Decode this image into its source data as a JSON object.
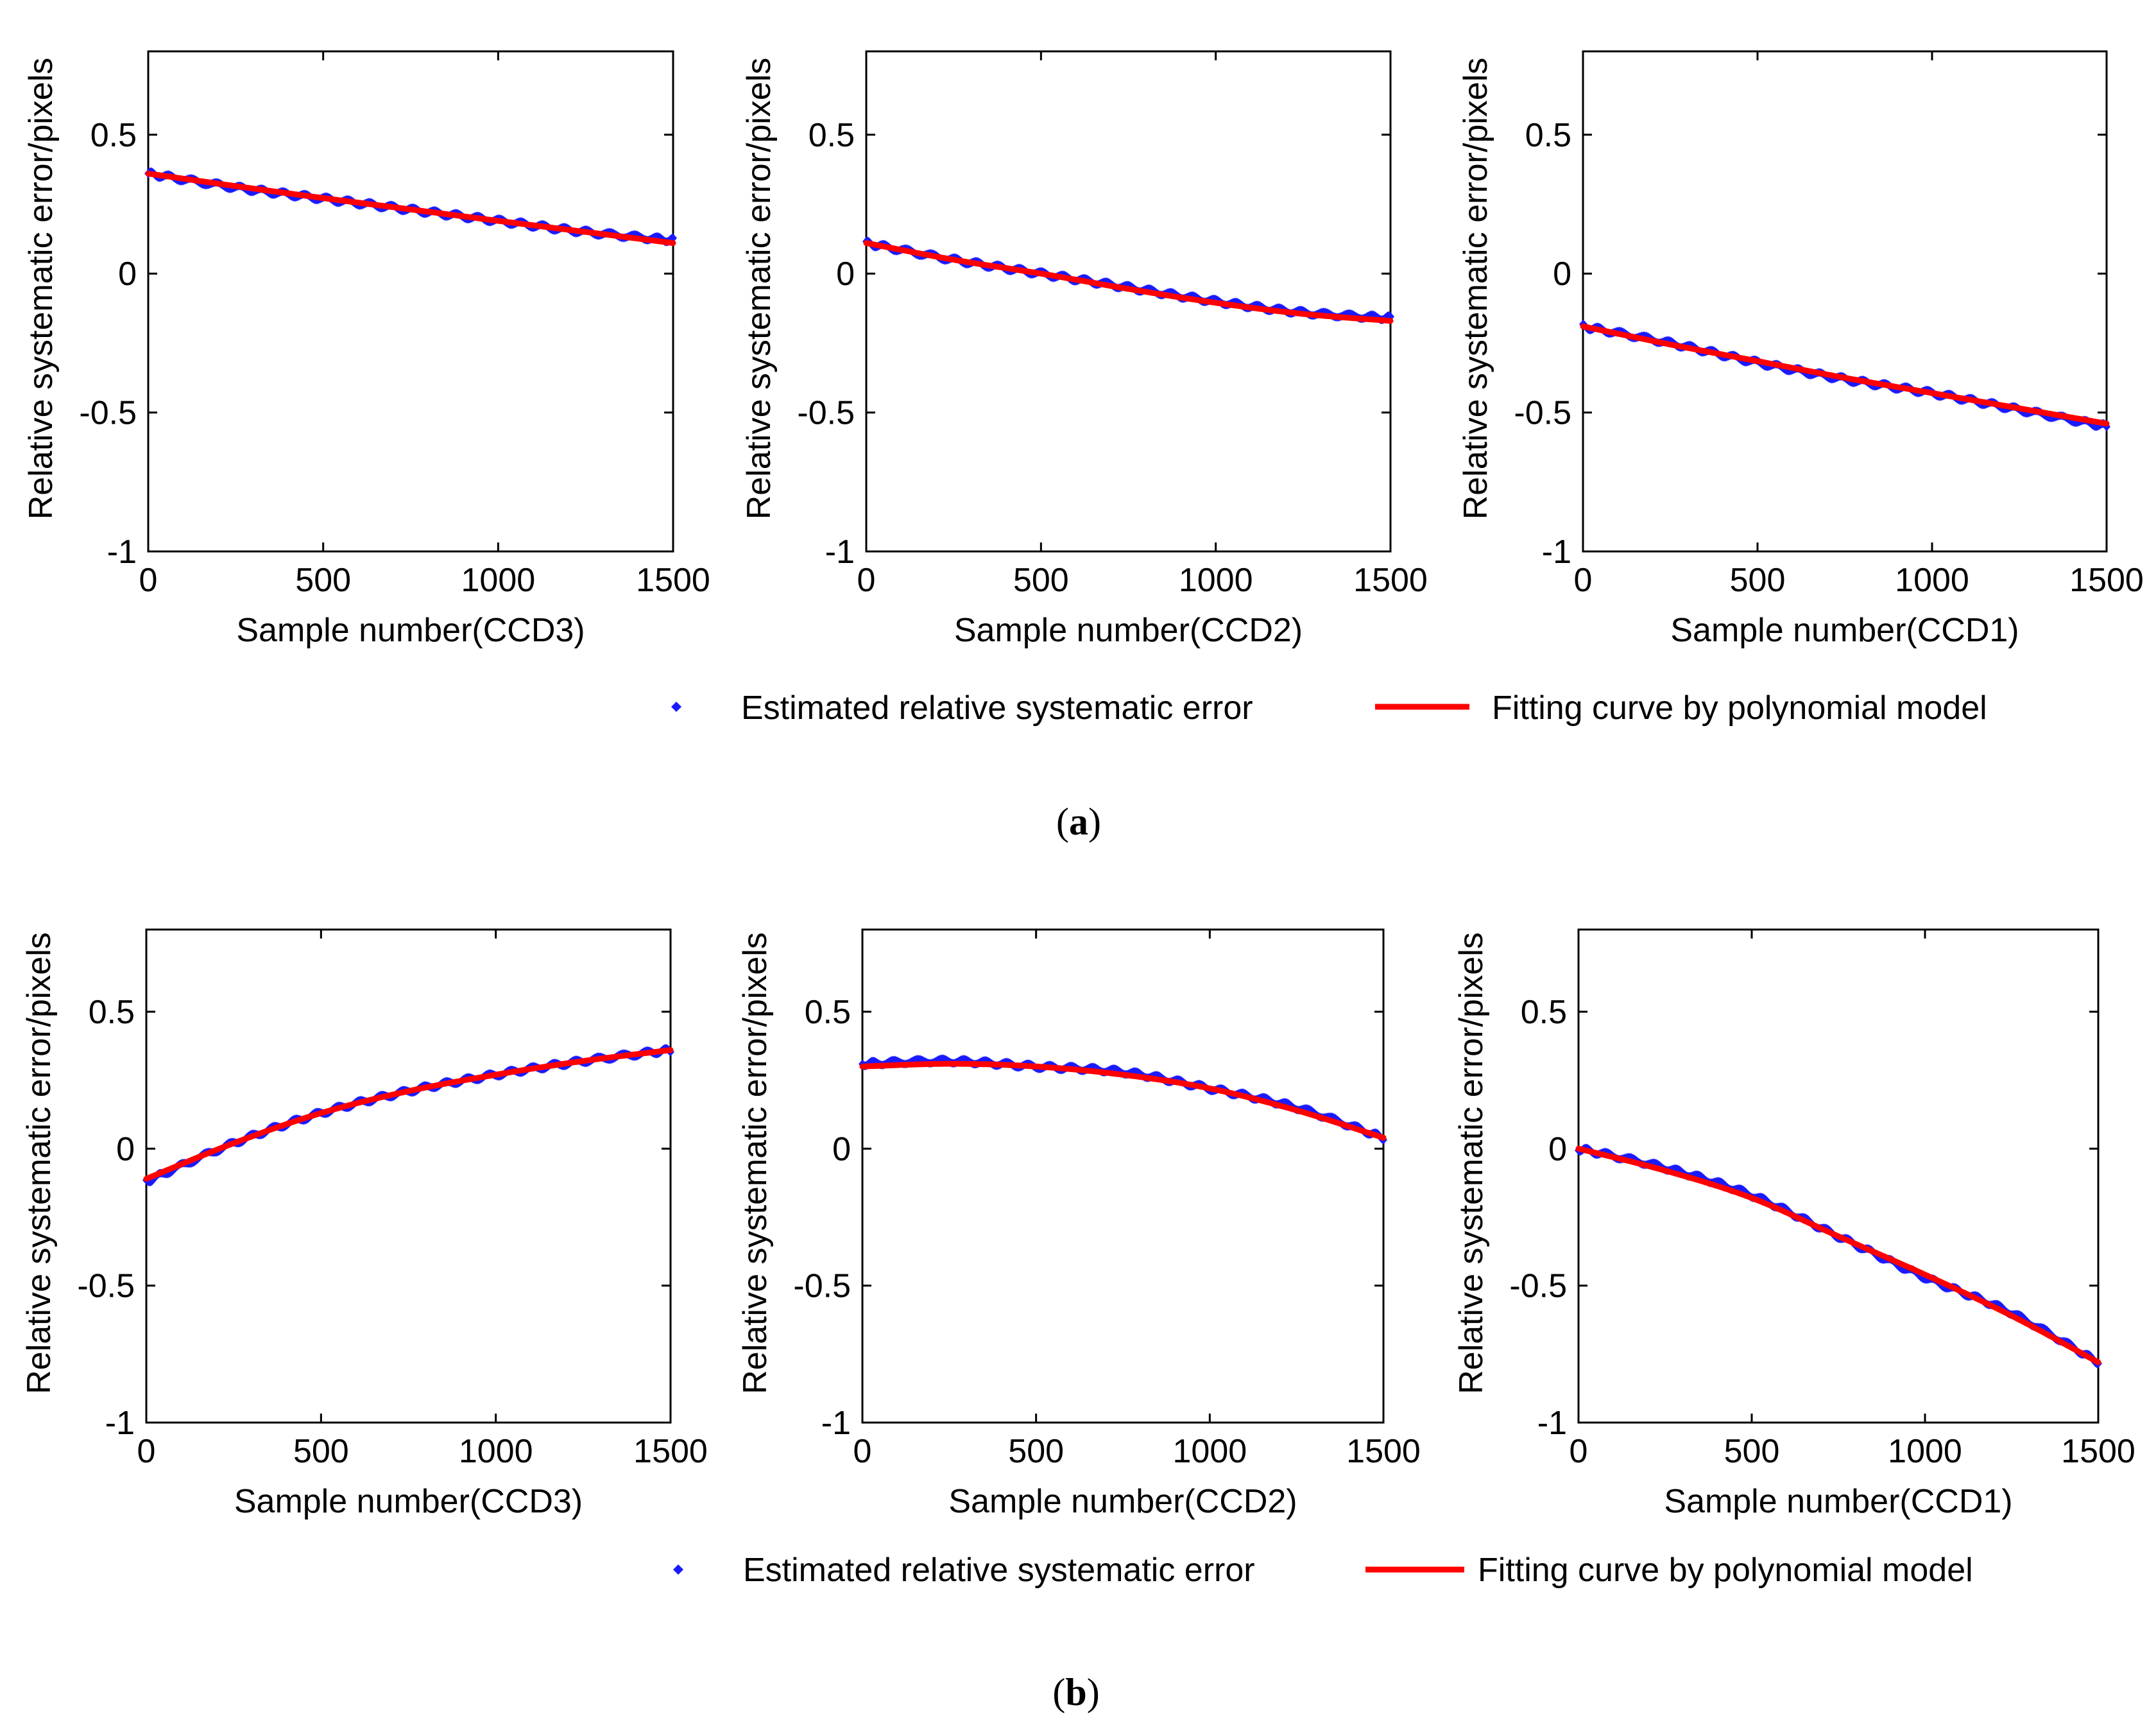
{
  "colors": {
    "points": "#1a1aff",
    "fit": "#ff0000",
    "axis": "#000000"
  },
  "legends": [
    {
      "points_label": "Estimated relative systematic error",
      "fit_label": "Fitting curve by polynomial model"
    },
    {
      "points_label": "Estimated relative systematic error",
      "fit_label": "Fitting curve by polynomial model"
    }
  ],
  "captions": [
    {
      "open": "(",
      "letter": "a",
      "close": ")"
    },
    {
      "open": "(",
      "letter": "b",
      "close": ")"
    }
  ],
  "chart_data": [
    {
      "type": "line",
      "panel": "a",
      "position": "left",
      "xlabel": "Sample number(CCD3)",
      "ylabel": "Relative systematic error/pixels",
      "xlim": [
        0,
        1500
      ],
      "ylim": [
        -1,
        0.8
      ],
      "xticks": [
        0,
        500,
        1000,
        1500
      ],
      "xtick_labels": [
        "0",
        "500",
        "1000",
        "1500"
      ],
      "yticks": [
        -1,
        -0.5,
        0,
        0.5
      ],
      "ytick_labels": [
        "-1",
        "-0.5",
        "0",
        "0.5"
      ],
      "series": [
        {
          "name": "Estimated relative systematic error",
          "style": "points",
          "x": [
            0,
            250,
            500,
            750,
            1000,
            1250,
            1500
          ],
          "y": [
            0.36,
            0.31,
            0.27,
            0.23,
            0.19,
            0.15,
            0.12
          ]
        },
        {
          "name": "Fitting curve by polynomial model",
          "style": "line",
          "x": [
            0,
            250,
            500,
            750,
            1000,
            1250,
            1500
          ],
          "y": [
            0.36,
            0.315,
            0.272,
            0.231,
            0.19,
            0.15,
            0.11
          ]
        }
      ]
    },
    {
      "type": "line",
      "panel": "a",
      "position": "middle",
      "xlabel": "Sample number(CCD2)",
      "ylabel": "Relative systematic error/pixels",
      "xlim": [
        0,
        1500
      ],
      "ylim": [
        -1,
        0.8
      ],
      "xticks": [
        0,
        500,
        1000,
        1500
      ],
      "xtick_labels": [
        "0",
        "500",
        "1000",
        "1500"
      ],
      "yticks": [
        -1,
        -0.5,
        0,
        0.5
      ],
      "ytick_labels": [
        "-1",
        "-0.5",
        "0",
        "0.5"
      ],
      "series": [
        {
          "name": "Estimated relative systematic error",
          "style": "points",
          "x": [
            0,
            250,
            500,
            750,
            1000,
            1250,
            1500
          ],
          "y": [
            0.11,
            0.05,
            0.0,
            -0.05,
            -0.1,
            -0.14,
            -0.16
          ]
        },
        {
          "name": "Fitting curve by polynomial model",
          "style": "line",
          "x": [
            0,
            250,
            500,
            750,
            1000,
            1250,
            1500
          ],
          "y": [
            0.11,
            0.05,
            0.0,
            -0.055,
            -0.105,
            -0.145,
            -0.17
          ]
        }
      ]
    },
    {
      "type": "line",
      "panel": "a",
      "position": "right",
      "xlabel": "Sample number(CCD1)",
      "ylabel": "Relative systematic error/pixels",
      "xlim": [
        0,
        1500
      ],
      "ylim": [
        -1,
        0.8
      ],
      "xticks": [
        0,
        500,
        1000,
        1500
      ],
      "xtick_labels": [
        "0",
        "500",
        "1000",
        "1500"
      ],
      "yticks": [
        -1,
        -0.5,
        0,
        0.5
      ],
      "ytick_labels": [
        "-1",
        "-0.5",
        "0",
        "0.5"
      ],
      "series": [
        {
          "name": "Estimated relative systematic error",
          "style": "points",
          "x": [
            0,
            250,
            500,
            750,
            1000,
            1250,
            1500
          ],
          "y": [
            -0.19,
            -0.25,
            -0.32,
            -0.38,
            -0.43,
            -0.49,
            -0.55
          ]
        },
        {
          "name": "Fitting curve by polynomial model",
          "style": "line",
          "x": [
            0,
            250,
            500,
            750,
            1000,
            1250,
            1500
          ],
          "y": [
            -0.19,
            -0.255,
            -0.315,
            -0.375,
            -0.43,
            -0.485,
            -0.54
          ]
        }
      ]
    },
    {
      "type": "line",
      "panel": "b",
      "position": "left",
      "xlabel": "Sample number(CCD3)",
      "ylabel": "Relative systematic error/pixels",
      "xlim": [
        0,
        1500
      ],
      "ylim": [
        -1,
        0.8
      ],
      "xticks": [
        0,
        500,
        1000,
        1500
      ],
      "xtick_labels": [
        "0",
        "500",
        "1000",
        "1500"
      ],
      "yticks": [
        -1,
        -0.5,
        0,
        0.5
      ],
      "ytick_labels": [
        "-1",
        "-0.5",
        "0",
        "0.5"
      ],
      "series": [
        {
          "name": "Estimated relative systematic error",
          "style": "points",
          "x": [
            0,
            250,
            500,
            750,
            1000,
            1250,
            1500
          ],
          "y": [
            -0.12,
            0.02,
            0.13,
            0.21,
            0.27,
            0.32,
            0.36
          ]
        },
        {
          "name": "Fitting curve by polynomial model",
          "style": "line",
          "x": [
            0,
            250,
            500,
            750,
            1000,
            1250,
            1500
          ],
          "y": [
            -0.11,
            0.02,
            0.13,
            0.21,
            0.27,
            0.32,
            0.36
          ]
        }
      ]
    },
    {
      "type": "line",
      "panel": "b",
      "position": "middle",
      "xlabel": "Sample number(CCD2)",
      "ylabel": "Relative systematic error/pixels",
      "xlim": [
        0,
        1500
      ],
      "ylim": [
        -1,
        0.8
      ],
      "xticks": [
        0,
        500,
        1000,
        1500
      ],
      "xtick_labels": [
        "0",
        "500",
        "1000",
        "1500"
      ],
      "yticks": [
        -1,
        -0.5,
        0,
        0.5
      ],
      "ytick_labels": [
        "-1",
        "-0.5",
        "0",
        "0.5"
      ],
      "series": [
        {
          "name": "Estimated relative systematic error",
          "style": "points",
          "x": [
            0,
            250,
            500,
            750,
            1000,
            1250,
            1500
          ],
          "y": [
            0.31,
            0.32,
            0.3,
            0.28,
            0.22,
            0.15,
            0.04
          ]
        },
        {
          "name": "Fitting curve by polynomial model",
          "style": "line",
          "x": [
            0,
            250,
            500,
            750,
            1000,
            1250,
            1500
          ],
          "y": [
            0.3,
            0.31,
            0.3,
            0.27,
            0.22,
            0.14,
            0.04
          ]
        }
      ]
    },
    {
      "type": "line",
      "panel": "b",
      "position": "right",
      "xlabel": "Sample number(CCD1)",
      "ylabel": "Relative systematic error/pixels",
      "xlim": [
        0,
        1500
      ],
      "ylim": [
        -1,
        0.8
      ],
      "xticks": [
        0,
        500,
        1000,
        1500
      ],
      "xtick_labels": [
        "0",
        "500",
        "1000",
        "1500"
      ],
      "yticks": [
        -1,
        -0.5,
        0,
        0.5
      ],
      "ytick_labels": [
        "-1",
        "-0.5",
        "0",
        "0.5"
      ],
      "series": [
        {
          "name": "Estimated relative systematic error",
          "style": "points",
          "x": [
            0,
            250,
            500,
            750,
            1000,
            1250,
            1500
          ],
          "y": [
            0.0,
            -0.07,
            -0.17,
            -0.32,
            -0.47,
            -0.6,
            -0.78
          ]
        },
        {
          "name": "Fitting curve by polynomial model",
          "style": "line",
          "x": [
            0,
            250,
            500,
            750,
            1000,
            1250,
            1500
          ],
          "y": [
            0.0,
            -0.08,
            -0.18,
            -0.32,
            -0.46,
            -0.61,
            -0.78
          ]
        }
      ]
    }
  ]
}
